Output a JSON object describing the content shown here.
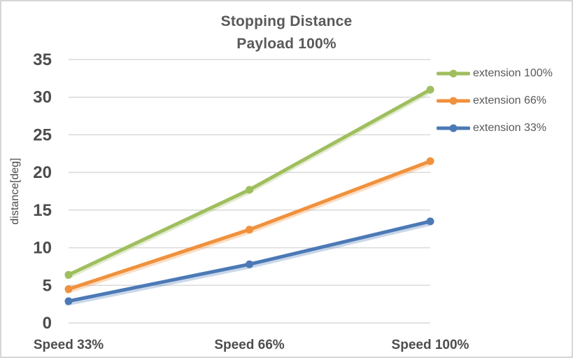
{
  "chart_data": {
    "type": "line",
    "title": "Stopping Distance",
    "subtitle": "Payload 100%",
    "ylabel": "distance[deg]",
    "categories": [
      "Speed 33%",
      "Speed 66%",
      "Speed 100%"
    ],
    "series": [
      {
        "name": "extension 100%",
        "color": "#9FBE5E",
        "values": [
          6.4,
          17.7,
          31.0
        ]
      },
      {
        "name": "extension 66%",
        "color": "#F0913D",
        "values": [
          4.5,
          12.4,
          21.5
        ]
      },
      {
        "name": "extension 33%",
        "color": "#4C79B6",
        "values": [
          2.9,
          7.8,
          13.5
        ]
      }
    ],
    "ylim": [
      0,
      35
    ],
    "yticks": [
      0,
      5,
      10,
      15,
      20,
      25,
      30,
      35
    ],
    "grid": true,
    "legend_position": "right",
    "marker": "circle",
    "colors": {
      "gridline": "#dadada",
      "tick_text": "#4d4d4d",
      "title_text": "#595959",
      "frame_border": "#d6d6d6"
    }
  }
}
